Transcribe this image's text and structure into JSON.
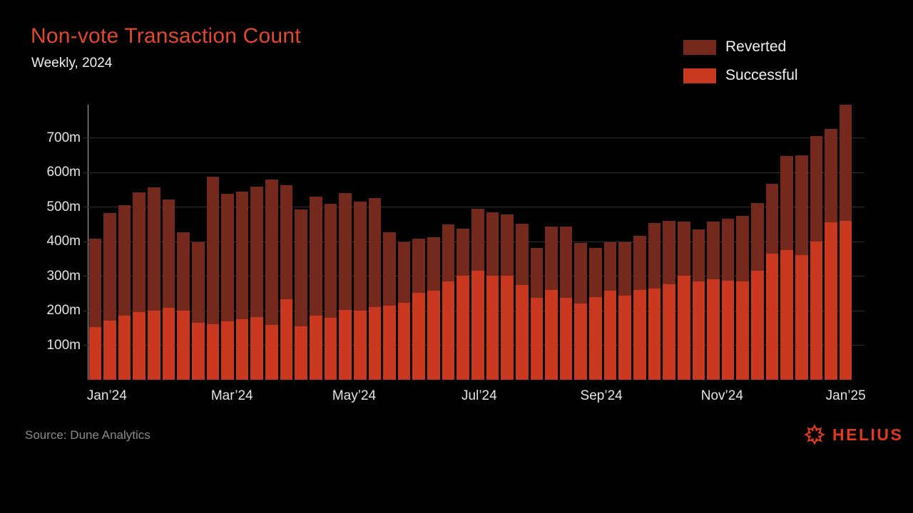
{
  "header": {
    "title": "Non-vote Transaction Count",
    "subtitle": "Weekly, 2024"
  },
  "legend": [
    {
      "label": "Reverted",
      "color": "#75291C"
    },
    {
      "label": "Successful",
      "color": "#C9381F"
    }
  ],
  "footer": {
    "source": "Source: Dune Analytics",
    "brand": "HELIUS",
    "brand_color": "#E23A1C"
  },
  "colors": {
    "background": "#000000",
    "title": "#E2492B",
    "text": "#F0F0F0",
    "axis_text": "#E4E4E4",
    "gridline": "#2D2D2D",
    "axis_line": "#A8A8A8",
    "source_text": "#8A8A8A"
  },
  "chart_data": {
    "type": "bar",
    "stacked": true,
    "title": "Non-vote Transaction Count",
    "subtitle": "Weekly, 2024",
    "xlabel": "",
    "ylabel": "",
    "y_unit": "m (millions of transactions)",
    "x_unit": "week of 2024 (52 weekly bars, Jan 2024 through Jan 2025)",
    "ylim": [
      0,
      800
    ],
    "grid": true,
    "legend_position": "top-right",
    "y_ticks": [
      {
        "label": "100m",
        "value": 100
      },
      {
        "label": "200m",
        "value": 200
      },
      {
        "label": "300m",
        "value": 300
      },
      {
        "label": "400m",
        "value": 400
      },
      {
        "label": "500m",
        "value": 500
      },
      {
        "label": "600m",
        "value": 600
      },
      {
        "label": "700m",
        "value": 700
      }
    ],
    "x_ticks": [
      {
        "label": "Jan’24",
        "week": 1.8
      },
      {
        "label": "Mar’24",
        "week": 10.3
      },
      {
        "label": "May’24",
        "week": 18.6
      },
      {
        "label": "Jul’24",
        "week": 27.1
      },
      {
        "label": "Sep’24",
        "week": 35.4
      },
      {
        "label": "Nov’24",
        "week": 43.6
      },
      {
        "label": "Jan’25",
        "week": 52.0
      }
    ],
    "series": [
      {
        "name": "Successful",
        "color": "#C9381F",
        "values": [
          153,
          172,
          185,
          195,
          201,
          208,
          200,
          164,
          161,
          170,
          175,
          182,
          158,
          233,
          155,
          186,
          180,
          202,
          200,
          211,
          214,
          223,
          252,
          257,
          284,
          301,
          316,
          301,
          301,
          275,
          238,
          260,
          238,
          221,
          240,
          257,
          243,
          260,
          264,
          277,
          301,
          284,
          290,
          286,
          284,
          316,
          364,
          375,
          360,
          401,
          455,
          460
        ]
      },
      {
        "name": "Reverted",
        "color": "#75291C",
        "values": [
          255,
          311,
          320,
          347,
          356,
          313,
          227,
          235,
          426,
          369,
          370,
          377,
          422,
          330,
          338,
          343,
          330,
          339,
          315,
          315,
          212,
          175,
          157,
          155,
          165,
          137,
          178,
          184,
          178,
          176,
          144,
          184,
          206,
          174,
          141,
          140,
          156,
          156,
          189,
          182,
          156,
          151,
          168,
          180,
          190,
          196,
          204,
          272,
          289,
          304,
          270,
          336
        ]
      }
    ],
    "totals": [
      408,
      483,
      505,
      542,
      557,
      521,
      427,
      399,
      587,
      539,
      545,
      559,
      580,
      563,
      493,
      529,
      510,
      541,
      515,
      526,
      426,
      398,
      409,
      412,
      449,
      438,
      494,
      485,
      479,
      451,
      382,
      444,
      444,
      395,
      381,
      397,
      399,
      416,
      453,
      459,
      457,
      435,
      458,
      466,
      474,
      512,
      568,
      647,
      649,
      705,
      725,
      796
    ]
  }
}
